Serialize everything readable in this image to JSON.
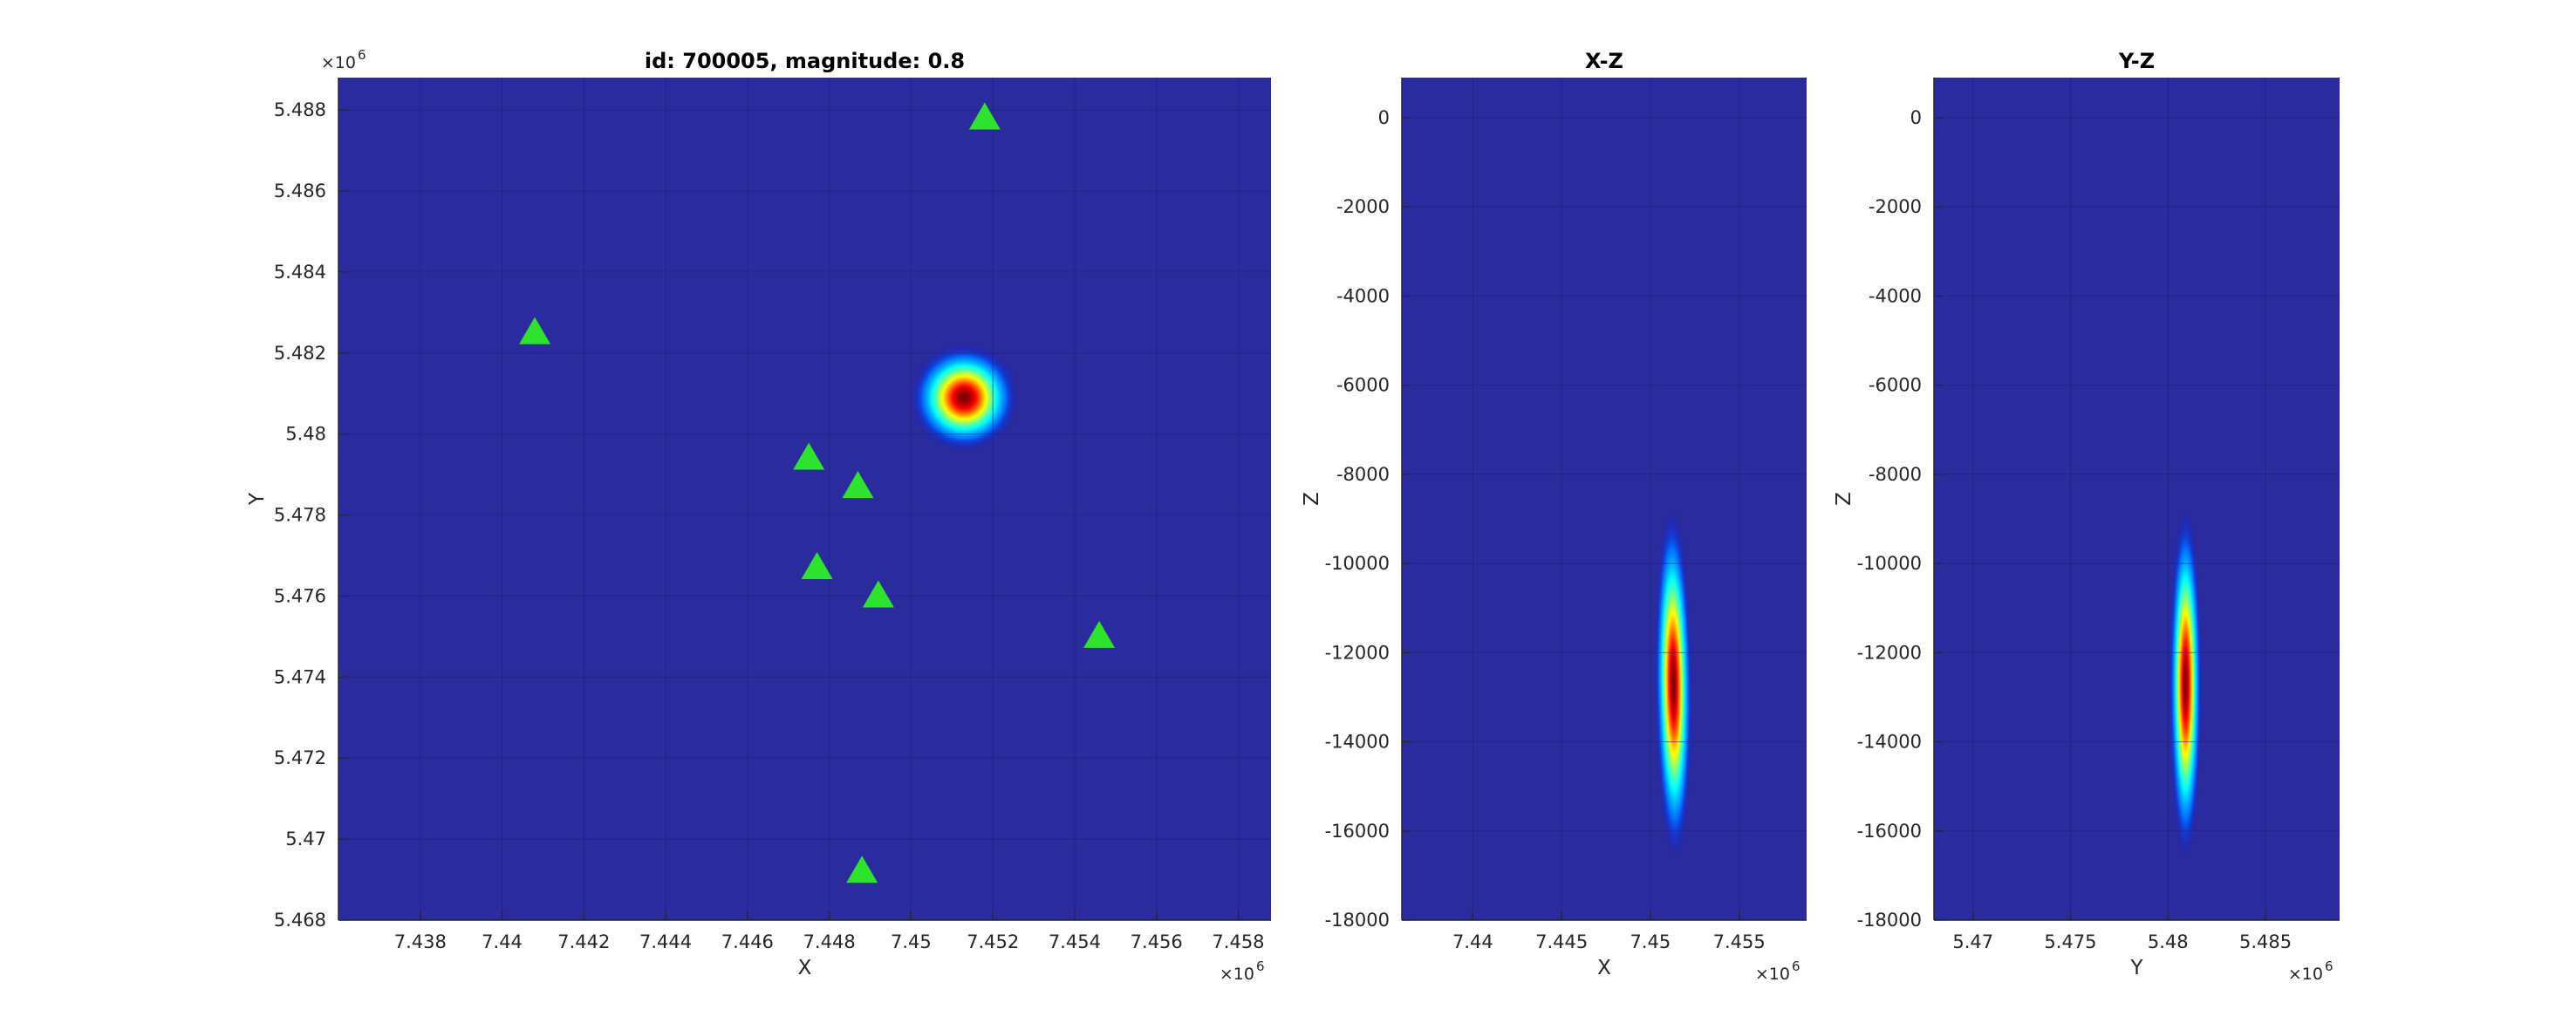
{
  "colors": {
    "background": "#2b2b9d",
    "marker": "#2de32d",
    "colormap": "jet"
  },
  "chart_data": [
    {
      "type": "heatmap",
      "title": "id: 700005, magnitude: 0.8",
      "xlabel": "X",
      "ylabel": "Y",
      "x_exponent_label": "×10",
      "x_exponent_power": "6",
      "y_exponent_label": "×10",
      "y_exponent_power": "6",
      "xlim": [
        7.436,
        7.4588
      ],
      "ylim": [
        5.468,
        5.4888
      ],
      "xticks": [
        7.438,
        7.44,
        7.442,
        7.444,
        7.446,
        7.448,
        7.45,
        7.452,
        7.454,
        7.456,
        7.458
      ],
      "xtick_labels": [
        "7.438",
        "7.44",
        "7.442",
        "7.444",
        "7.446",
        "7.448",
        "7.45",
        "7.452",
        "7.454",
        "7.456",
        "7.458"
      ],
      "yticks": [
        5.468,
        5.47,
        5.472,
        5.474,
        5.476,
        5.478,
        5.48,
        5.482,
        5.484,
        5.486,
        5.488
      ],
      "ytick_labels": [
        "5.468",
        "5.47",
        "5.472",
        "5.474",
        "5.476",
        "5.478",
        "5.48",
        "5.482",
        "5.484",
        "5.486",
        "5.488"
      ],
      "grid": true,
      "hotspot": {
        "x": 7.4513,
        "y": 5.4809,
        "sx": 0.0005,
        "sy": 0.0005
      },
      "stations": [
        {
          "x": 7.4518,
          "y": 5.4878
        },
        {
          "x": 7.4408,
          "y": 5.4825
        },
        {
          "x": 7.4475,
          "y": 5.4794
        },
        {
          "x": 7.4487,
          "y": 5.4787
        },
        {
          "x": 7.4477,
          "y": 5.4767
        },
        {
          "x": 7.4492,
          "y": 5.476
        },
        {
          "x": 7.4546,
          "y": 5.475
        },
        {
          "x": 7.4488,
          "y": 5.4692
        }
      ]
    },
    {
      "type": "heatmap",
      "title": "X-Z",
      "xlabel": "X",
      "ylabel": "Z",
      "x_exponent_label": "×10",
      "x_exponent_power": "6",
      "xlim": [
        7.436,
        7.4588
      ],
      "ylim": [
        -18000,
        900
      ],
      "xticks": [
        7.44,
        7.445,
        7.45,
        7.455
      ],
      "xtick_labels": [
        "7.44",
        "7.445",
        "7.45",
        "7.455"
      ],
      "yticks": [
        -18000,
        -16000,
        -14000,
        -12000,
        -10000,
        -8000,
        -6000,
        -4000,
        -2000,
        0
      ],
      "ytick_labels": [
        "-18000",
        "-16000",
        "-14000",
        "-12000",
        "-10000",
        "-8000",
        "-6000",
        "-4000",
        "-2000",
        "0"
      ],
      "grid": true,
      "hotspot": {
        "x": 7.4513,
        "y": -12700,
        "sx": 0.0004,
        "sy": 1500,
        "tilt": -4e-05
      }
    },
    {
      "type": "heatmap",
      "title": "Y-Z",
      "xlabel": "Y",
      "ylabel": "Z",
      "x_exponent_label": "×10",
      "x_exponent_power": "6",
      "xlim": [
        5.468,
        5.4888
      ],
      "ylim": [
        -18000,
        900
      ],
      "xticks": [
        5.47,
        5.475,
        5.48,
        5.485
      ],
      "xtick_labels": [
        "5.47",
        "5.475",
        "5.48",
        "5.485"
      ],
      "yticks": [
        -18000,
        -16000,
        -14000,
        -12000,
        -10000,
        -8000,
        -6000,
        -4000,
        -2000,
        0
      ],
      "ytick_labels": [
        "-18000",
        "-16000",
        "-14000",
        "-12000",
        "-10000",
        "-8000",
        "-6000",
        "-4000",
        "-2000",
        "0"
      ],
      "grid": true,
      "hotspot": {
        "x": 5.4809,
        "y": -12700,
        "sx": 0.00032,
        "sy": 1500,
        "tilt": 0
      }
    }
  ]
}
